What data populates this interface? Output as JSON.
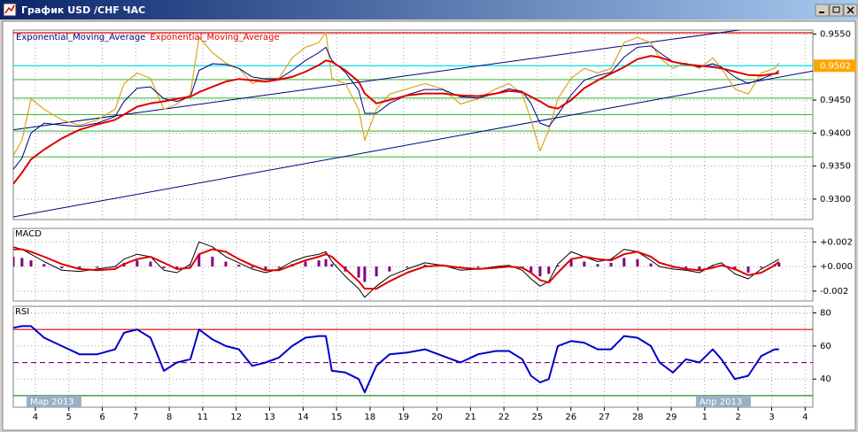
{
  "window": {
    "title": "График USD /CHF ЧАС"
  },
  "chart_data": {
    "type": "line",
    "xlim": [
      -0.66,
      23.23
    ],
    "xticks": [
      {
        "value": 0,
        "label": "4"
      },
      {
        "value": 1,
        "label": "5"
      },
      {
        "value": 2,
        "label": "6"
      },
      {
        "value": 3,
        "label": "7"
      },
      {
        "value": 4,
        "label": "8"
      },
      {
        "value": 5,
        "label": "11"
      },
      {
        "value": 6,
        "label": "12"
      },
      {
        "value": 7,
        "label": "13"
      },
      {
        "value": 8,
        "label": "14"
      },
      {
        "value": 9,
        "label": "15"
      },
      {
        "value": 10,
        "label": "18"
      },
      {
        "value": 11,
        "label": "19"
      },
      {
        "value": 12,
        "label": "20"
      },
      {
        "value": 13,
        "label": "21"
      },
      {
        "value": 14,
        "label": "22"
      },
      {
        "value": 15,
        "label": "25"
      },
      {
        "value": 16,
        "label": "26"
      },
      {
        "value": 17,
        "label": "27"
      },
      {
        "value": 18,
        "label": "28"
      },
      {
        "value": 19,
        "label": "29"
      },
      {
        "value": 20,
        "label": "1"
      },
      {
        "value": 21,
        "label": "2"
      },
      {
        "value": 22,
        "label": "3"
      },
      {
        "value": 23,
        "label": "4"
      }
    ],
    "periods": [
      {
        "value": 0,
        "label": "Мар 2013"
      },
      {
        "value": 20,
        "label": "Апр 2013"
      }
    ],
    "grid": true,
    "x": [
      -0.66,
      -0.4,
      -0.13,
      0.26,
      0.79,
      1.32,
      1.85,
      2.38,
      2.65,
      3.04,
      3.44,
      3.84,
      4.23,
      4.63,
      4.89,
      5.29,
      5.69,
      6.08,
      6.48,
      6.88,
      7.28,
      7.67,
      8.07,
      8.47,
      8.68,
      8.86,
      9.26,
      9.66,
      9.84,
      10.19,
      10.58,
      11.11,
      11.64,
      12.17,
      12.7,
      13.23,
      13.76,
      14.15,
      14.55,
      14.81,
      15.08,
      15.34,
      15.61,
      16.01,
      16.4,
      16.8,
      17.2,
      17.59,
      17.99,
      18.39,
      18.65,
      19.05,
      19.44,
      19.84,
      20.24,
      20.5,
      20.9,
      21.3,
      21.69,
      22.09,
      22.22
    ],
    "panels": [
      {
        "ylim": [
          0.9269,
          0.9556
        ],
        "yticks": [
          {
            "value": 0.955,
            "label": "0.9550"
          },
          {
            "value": 0.945,
            "label": "0.9450"
          },
          {
            "value": 0.94,
            "label": "0.9400"
          },
          {
            "value": 0.935,
            "label": "0.9350"
          },
          {
            "value": 0.93,
            "label": "0.9300"
          }
        ],
        "hlines": [
          {
            "value": 0.9552,
            "color": "#e00000"
          },
          {
            "value": 0.9502,
            "color": "#00e0e0"
          },
          {
            "value": 0.9481,
            "color": "#40c040"
          },
          {
            "value": 0.9453,
            "color": "#40c040"
          },
          {
            "value": 0.9428,
            "color": "#40c040"
          },
          {
            "value": 0.9403,
            "color": "#40c040"
          },
          {
            "value": 0.9364,
            "color": "#40c040"
          }
        ],
        "trendlines": [
          {
            "x": [
              -0.66,
              21.16
            ],
            "y": [
              0.9405,
              0.9557
            ],
            "color": "#000080"
          },
          {
            "x": [
              -0.66,
              23.23
            ],
            "y": [
              0.9273,
              0.9494
            ],
            "color": "#000080"
          }
        ],
        "price_label": {
          "value": 0.9502,
          "label": "0.9502",
          "color": "#ffa500"
        },
        "series": [
          {
            "type": "line",
            "color": "#daa520",
            "width": 1.2,
            "values": [
              0.9366,
              0.9389,
              0.9452,
              0.9436,
              0.942,
              0.9412,
              0.942,
              0.9436,
              0.9475,
              0.9491,
              0.9483,
              0.9436,
              0.9444,
              0.9459,
              0.9545,
              0.9522,
              0.9506,
              0.9498,
              0.9475,
              0.9483,
              0.9483,
              0.9514,
              0.953,
              0.9537,
              0.9553,
              0.9483,
              0.9475,
              0.9436,
              0.9389,
              0.9436,
              0.9459,
              0.9467,
              0.9475,
              0.9467,
              0.9444,
              0.9452,
              0.9467,
              0.9475,
              0.9459,
              0.942,
              0.9373,
              0.9405,
              0.9452,
              0.9483,
              0.9498,
              0.9491,
              0.9498,
              0.9537,
              0.9545,
              0.9537,
              0.9514,
              0.9498,
              0.9506,
              0.9498,
              0.9514,
              0.9498,
              0.9467,
              0.9459,
              0.9491,
              0.9498,
              0.9506
            ]
          },
          {
            "type": "line",
            "name": "Exponential_Moving_Average",
            "color": "#000080",
            "width": 1,
            "values": [
              0.9345,
              0.9362,
              0.94,
              0.9415,
              0.9412,
              0.941,
              0.9415,
              0.9425,
              0.9448,
              0.9468,
              0.947,
              0.9452,
              0.9448,
              0.9455,
              0.9495,
              0.9505,
              0.9504,
              0.9498,
              0.9485,
              0.9482,
              0.9482,
              0.9495,
              0.951,
              0.9522,
              0.953,
              0.951,
              0.9492,
              0.9465,
              0.943,
              0.943,
              0.9445,
              0.9458,
              0.9466,
              0.9466,
              0.9455,
              0.9453,
              0.946,
              0.9467,
              0.9463,
              0.9445,
              0.9415,
              0.941,
              0.9428,
              0.9458,
              0.948,
              0.9487,
              0.9492,
              0.9515,
              0.953,
              0.9532,
              0.9522,
              0.9508,
              0.9505,
              0.95,
              0.9505,
              0.95,
              0.9485,
              0.9475,
              0.9482,
              0.949,
              0.9495
            ]
          },
          {
            "type": "line",
            "name": "Exponential_Moving_Average",
            "color": "#e00000",
            "width": 2,
            "values": [
              0.9323,
              0.934,
              0.936,
              0.9375,
              0.9392,
              0.9405,
              0.9413,
              0.942,
              0.9428,
              0.944,
              0.9445,
              0.9448,
              0.9452,
              0.9455,
              0.9462,
              0.947,
              0.9478,
              0.9482,
              0.948,
              0.9478,
              0.9481,
              0.9485,
              0.9493,
              0.9503,
              0.951,
              0.9508,
              0.9495,
              0.9478,
              0.946,
              0.9445,
              0.945,
              0.9457,
              0.946,
              0.946,
              0.9457,
              0.9456,
              0.946,
              0.9464,
              0.9462,
              0.9455,
              0.9448,
              0.944,
              0.9437,
              0.945,
              0.9468,
              0.948,
              0.949,
              0.95,
              0.9512,
              0.9517,
              0.9515,
              0.9508,
              0.9504,
              0.9502,
              0.95,
              0.9498,
              0.9493,
              0.9488,
              0.9487,
              0.949,
              0.9491
            ]
          }
        ]
      },
      {
        "title": "MACD",
        "ylim": [
          -0.0028,
          0.0031
        ],
        "yticks": [
          {
            "value": 0.002,
            "label": "+0.002"
          },
          {
            "value": 0,
            "label": "+0.000"
          },
          {
            "value": -0.002,
            "label": "-0.002"
          }
        ],
        "series": [
          {
            "type": "bar",
            "color": "#800080",
            "values": [
              0.0008,
              0.0007,
              0.0005,
              0.0002,
              -0.00015,
              -0.0002,
              -0.0001,
              0,
              0.0003,
              0.0005,
              0.0004,
              -0.00015,
              -0.00025,
              0.0001,
              0.001,
              0.0008,
              0.0004,
              0.00015,
              -0.0001,
              -0.00025,
              -0.0001,
              0.0002,
              0.0004,
              0.0005,
              0.0006,
              0.0002,
              -0.0004,
              -0.0009,
              -0.00125,
              -0.0008,
              -0.0004,
              -0.0001,
              0.00015,
              5e-05,
              -0.00015,
              -0.0001,
              0,
              5e-05,
              -0.00015,
              -0.0005,
              -0.0008,
              -0.0006,
              0.0001,
              0.0006,
              0.0004,
              0.0002,
              0.0003,
              0.0007,
              0.0006,
              0.00025,
              0,
              -0.0001,
              -0.00015,
              -0.00025,
              5e-05,
              0.00015,
              -0.0003,
              -0.0005,
              -0.0001,
              0.0002,
              0.0003
            ]
          },
          {
            "type": "line",
            "color": "#000000",
            "width": 1,
            "values": [
              0.0016,
              0.0014,
              0.001,
              0.0004,
              -0.0003,
              -0.0004,
              -0.0002,
              0,
              0.0006,
              0.001,
              0.0008,
              -0.0003,
              -0.0005,
              0.0002,
              0.002,
              0.0016,
              0.0008,
              0.0003,
              -0.0002,
              -0.0005,
              -0.0002,
              0.0004,
              0.0008,
              0.001,
              0.0012,
              0.0004,
              -0.0008,
              -0.0018,
              -0.0025,
              -0.0016,
              -0.0008,
              -0.0002,
              0.0003,
              0.0001,
              -0.0003,
              -0.0002,
              0,
              0.0001,
              -0.0003,
              -0.001,
              -0.0016,
              -0.0012,
              0.0002,
              0.0012,
              0.0008,
              0.0004,
              0.0006,
              0.0014,
              0.0012,
              0.0005,
              0,
              -0.0002,
              -0.0003,
              -0.0005,
              0.0001,
              0.0003,
              -0.0006,
              -0.001,
              -0.0002,
              0.0004,
              0.0006
            ]
          },
          {
            "type": "line",
            "color": "#e00000",
            "width": 2,
            "values": [
              0.0014,
              0.0014,
              0.0012,
              0.0008,
              0.0002,
              -0.0002,
              -0.0003,
              -0.0002,
              0.0002,
              0.0006,
              0.0008,
              0.0003,
              -0.0002,
              -0.0001,
              0.001,
              0.0014,
              0.0012,
              0.0006,
              0.0001,
              -0.0003,
              -0.0003,
              0.0001,
              0.0005,
              0.0008,
              0.001,
              0.0008,
              -0.0002,
              -0.0012,
              -0.0018,
              -0.0018,
              -0.0012,
              -0.0005,
              0,
              0.0001,
              -0.0001,
              -0.0002,
              -0.0001,
              0,
              -0.0001,
              -0.0005,
              -0.0011,
              -0.0013,
              -0.0005,
              0.0006,
              0.0008,
              0.0006,
              0.0005,
              0.001,
              0.0012,
              0.0008,
              0.0003,
              0,
              -0.0002,
              -0.0003,
              -0.0001,
              0.0001,
              -0.0002,
              -0.0007,
              -0.0005,
              0.0001,
              0.0004
            ]
          }
        ]
      },
      {
        "title": "RSI",
        "ylim": [
          23,
          84
        ],
        "yticks": [
          80,
          60,
          40
        ],
        "hlines": [
          {
            "value": 70,
            "color": "#e00000"
          },
          {
            "value": 50,
            "color": "#800080",
            "dash": true
          },
          {
            "value": 30,
            "color": "#008000"
          }
        ],
        "series": [
          {
            "type": "line",
            "color": "#0000c8",
            "width": 2,
            "values": [
              71,
              72,
              72,
              65,
              60,
              55,
              55,
              58,
              68,
              70,
              65,
              45,
              50,
              52,
              70,
              64,
              60,
              58,
              48,
              50,
              53,
              60,
              65,
              66,
              66,
              45,
              44,
              40,
              32,
              48,
              55,
              56,
              58,
              54,
              50,
              55,
              57,
              57,
              52,
              42,
              38,
              40,
              60,
              63,
              62,
              58,
              58,
              66,
              65,
              60,
              50,
              44,
              52,
              50,
              58,
              52,
              40,
              42,
              54,
              58,
              58
            ]
          }
        ]
      }
    ]
  }
}
